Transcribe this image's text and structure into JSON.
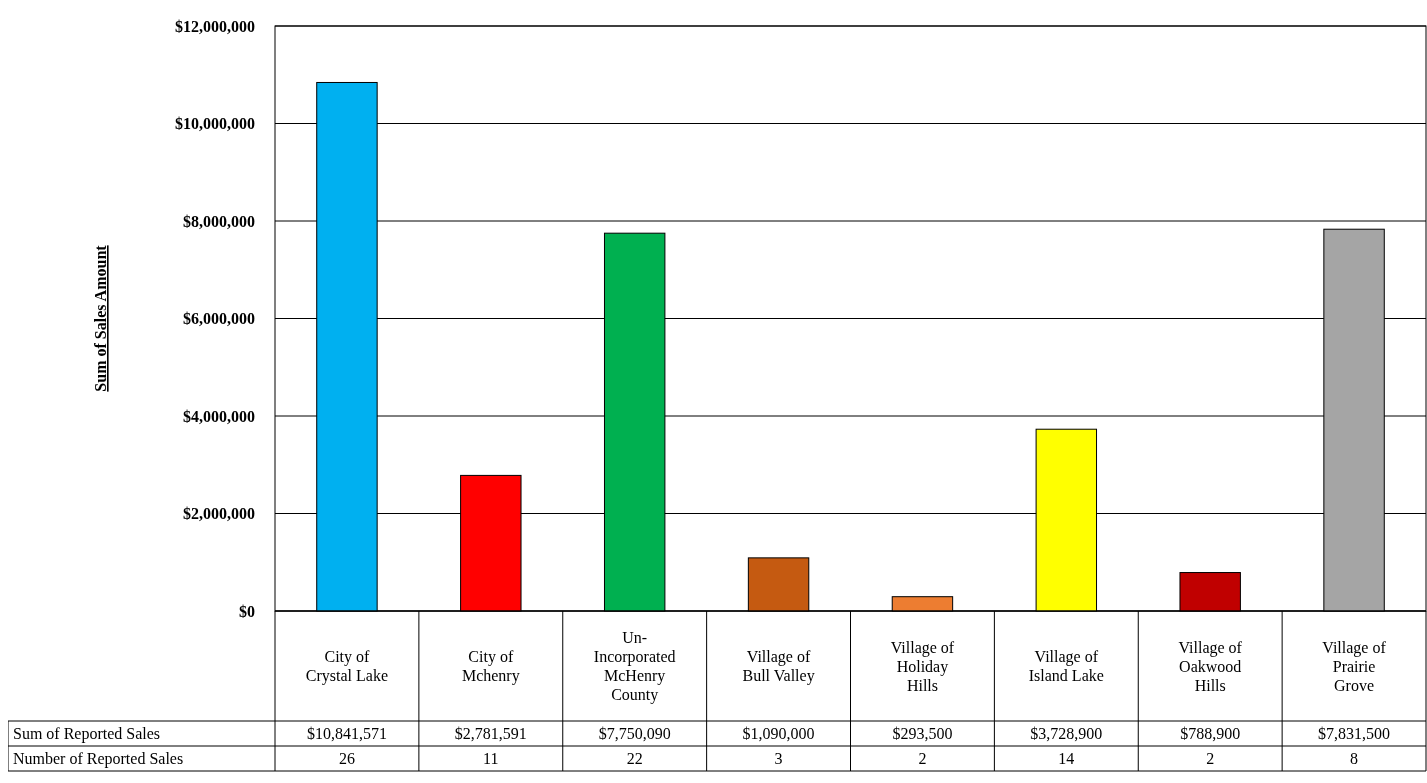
{
  "chart_data": {
    "type": "bar",
    "ylabel": "Sum of Sales Amount",
    "categories": [
      "City of Crystal Lake",
      "City of Mchenry",
      "Un-Incorporated McHenry County",
      "Village of Bull Valley",
      "Village of Holiday Hills",
      "Village of Island Lake",
      "Village of Oakwood Hills",
      "Village of Prairie Grove"
    ],
    "series": [
      {
        "name": "Sum of Reported Sales",
        "colors": [
          "#00b0f0",
          "#ff0000",
          "#00b050",
          "#c55a11",
          "#ed7d31",
          "#ffff00",
          "#c00000",
          "#a5a5a5"
        ],
        "values": [
          10841571,
          2781591,
          7750090,
          1090000,
          293500,
          3728900,
          788900,
          7831500
        ],
        "value_labels": [
          "$10,841,571",
          "$2,781,591",
          "$7,750,090",
          "$1,090,000",
          "$293,500",
          "$3,728,900",
          "$788,900",
          "$7,831,500"
        ]
      }
    ],
    "ylim": [
      0,
      12000000
    ],
    "yticks": [
      {
        "value": 0,
        "label": "$0"
      },
      {
        "value": 2000000,
        "label": "$2,000,000"
      },
      {
        "value": 4000000,
        "label": "$4,000,000"
      },
      {
        "value": 6000000,
        "label": "$6,000,000"
      },
      {
        "value": 8000000,
        "label": "$8,000,000"
      },
      {
        "value": 10000000,
        "label": "$10,000,000"
      },
      {
        "value": 12000000,
        "label": "$12,000,000"
      }
    ],
    "grid": "y",
    "annotations": [
      "Number of Reported Sales",
      "26",
      "11",
      "22",
      "3",
      "2",
      "14",
      "2",
      "8"
    ]
  }
}
